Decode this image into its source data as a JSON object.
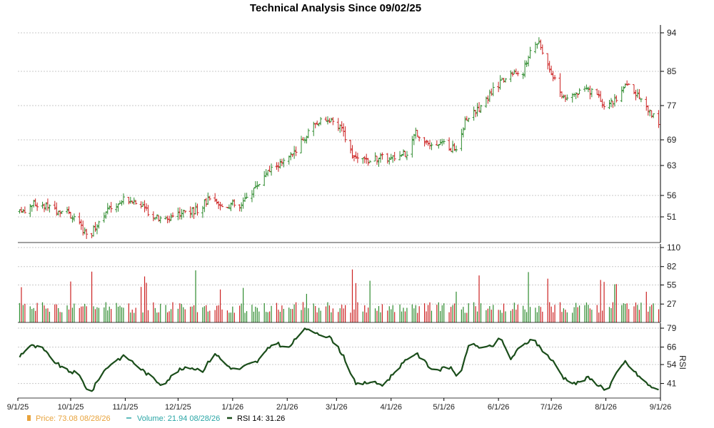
{
  "chart_data": {
    "type": "line",
    "title": "Technical Analysis Since 09/02/25",
    "x_axis": {
      "ticks": [
        "9/1/25",
        "10/1/25",
        "11/1/25",
        "12/1/25",
        "1/1/26",
        "2/1/26",
        "3/1/26",
        "4/1/26",
        "5/1/26",
        "6/1/26",
        "7/1/26",
        "8/1/26",
        "9/1/26"
      ]
    },
    "panels": {
      "price": {
        "type": "ohlc",
        "yticks": [
          51,
          56,
          63,
          69,
          77,
          85,
          94
        ],
        "ylim": [
          45,
          95
        ],
        "up_color": "#2e8b2e",
        "down_color": "#cc2222",
        "anchors": [
          [
            "2025-09-02",
            52
          ],
          [
            "2025-09-10",
            54
          ],
          [
            "2025-09-20",
            53
          ],
          [
            "2025-10-01",
            51.5
          ],
          [
            "2025-10-08",
            48
          ],
          [
            "2025-10-12",
            46.5
          ],
          [
            "2025-10-20",
            52
          ],
          [
            "2025-11-01",
            55.5
          ],
          [
            "2025-11-08",
            54
          ],
          [
            "2025-11-15",
            52
          ],
          [
            "2025-11-22",
            50
          ],
          [
            "2025-12-01",
            52
          ],
          [
            "2025-12-12",
            52.5
          ],
          [
            "2025-12-18",
            55
          ],
          [
            "2025-12-25",
            53.5
          ],
          [
            "2026-01-01",
            54
          ],
          [
            "2026-01-05",
            53
          ],
          [
            "2026-01-10",
            56
          ],
          [
            "2026-01-20",
            61
          ],
          [
            "2026-01-25",
            63
          ],
          [
            "2026-02-01",
            64
          ],
          [
            "2026-02-10",
            69
          ],
          [
            "2026-02-18",
            73
          ],
          [
            "2026-02-25",
            73.5
          ],
          [
            "2026-03-05",
            71
          ],
          [
            "2026-03-10",
            65
          ],
          [
            "2026-03-20",
            64
          ],
          [
            "2026-03-25",
            65
          ],
          [
            "2026-04-01",
            64.5
          ],
          [
            "2026-04-10",
            66
          ],
          [
            "2026-04-15",
            71
          ],
          [
            "2026-04-25",
            67
          ],
          [
            "2026-05-01",
            68
          ],
          [
            "2026-05-05",
            67
          ],
          [
            "2026-05-10",
            67.5
          ],
          [
            "2026-05-13",
            74
          ],
          [
            "2026-05-20",
            76
          ],
          [
            "2026-05-26",
            79
          ],
          [
            "2026-06-01",
            82
          ],
          [
            "2026-06-08",
            84.5
          ],
          [
            "2026-06-15",
            85
          ],
          [
            "2026-06-20",
            91
          ],
          [
            "2026-06-24",
            92
          ],
          [
            "2026-06-30",
            86
          ],
          [
            "2026-07-05",
            81
          ],
          [
            "2026-07-10",
            78
          ],
          [
            "2026-07-20",
            81
          ],
          [
            "2026-07-28",
            79
          ],
          [
            "2026-08-01",
            77
          ],
          [
            "2026-08-08",
            79
          ],
          [
            "2026-08-13",
            82
          ],
          [
            "2026-08-18",
            80
          ],
          [
            "2026-08-25",
            76
          ],
          [
            "2026-08-31",
            73
          ]
        ]
      },
      "volume": {
        "type": "bar",
        "yticks": [
          27,
          55,
          82,
          110
        ],
        "ylim": [
          0,
          110
        ]
      },
      "rsi": {
        "type": "line",
        "label": "RSI",
        "yticks": [
          41,
          54,
          66,
          79
        ],
        "ylim": [
          31,
          80
        ],
        "color": "#1a4d1a",
        "anchors": [
          [
            "2025-09-02",
            60
          ],
          [
            "2025-09-08",
            67
          ],
          [
            "2025-09-15",
            65
          ],
          [
            "2025-09-20",
            58
          ],
          [
            "2025-09-28",
            50
          ],
          [
            "2025-10-05",
            48
          ],
          [
            "2025-10-10",
            38
          ],
          [
            "2025-10-12",
            33
          ],
          [
            "2025-10-18",
            47
          ],
          [
            "2025-10-25",
            56
          ],
          [
            "2025-11-01",
            60
          ],
          [
            "2025-11-08",
            53
          ],
          [
            "2025-11-15",
            46
          ],
          [
            "2025-11-22",
            40
          ],
          [
            "2025-12-01",
            50
          ],
          [
            "2025-12-08",
            52
          ],
          [
            "2025-12-15",
            50
          ],
          [
            "2025-12-22",
            62
          ],
          [
            "2025-12-28",
            54
          ],
          [
            "2026-01-03",
            50
          ],
          [
            "2026-01-10",
            54
          ],
          [
            "2026-01-15",
            56
          ],
          [
            "2026-01-25",
            70
          ],
          [
            "2026-02-01",
            64
          ],
          [
            "2026-02-10",
            78
          ],
          [
            "2026-02-18",
            76
          ],
          [
            "2026-02-26",
            72
          ],
          [
            "2026-03-05",
            60
          ],
          [
            "2026-03-12",
            40
          ],
          [
            "2026-03-20",
            42
          ],
          [
            "2026-03-28",
            40
          ],
          [
            "2026-04-05",
            52
          ],
          [
            "2026-04-15",
            62
          ],
          [
            "2026-04-25",
            50
          ],
          [
            "2026-05-05",
            52
          ],
          [
            "2026-05-10",
            44
          ],
          [
            "2026-05-15",
            68
          ],
          [
            "2026-05-22",
            66
          ],
          [
            "2026-05-28",
            66
          ],
          [
            "2026-06-02",
            72
          ],
          [
            "2026-06-08",
            58
          ],
          [
            "2026-06-12",
            64
          ],
          [
            "2026-06-20",
            72
          ],
          [
            "2026-06-26",
            64
          ],
          [
            "2026-07-02",
            56
          ],
          [
            "2026-07-08",
            45
          ],
          [
            "2026-07-15",
            41
          ],
          [
            "2026-07-22",
            45
          ],
          [
            "2026-07-28",
            40
          ],
          [
            "2026-08-02",
            36
          ],
          [
            "2026-08-05",
            44
          ],
          [
            "2026-08-12",
            56
          ],
          [
            "2026-08-18",
            48
          ],
          [
            "2026-08-25",
            40
          ],
          [
            "2026-08-31",
            36
          ]
        ]
      }
    },
    "legend": [
      {
        "label": "Price: 73.08  08/28/26",
        "color": "#e8a33c"
      },
      {
        "label": "Volume: 21.94  08/28/26",
        "color": "#2aa6a6"
      },
      {
        "label": "RSI 14: 31.26",
        "color": "#1a4d1a"
      }
    ],
    "grid": true
  }
}
